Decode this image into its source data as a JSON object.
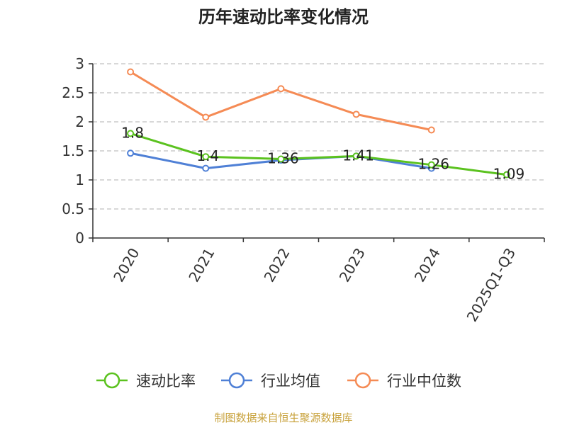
{
  "chart_data": {
    "type": "line",
    "title": "历年速动比率变化情况",
    "categories": [
      "2020",
      "2021",
      "2022",
      "2023",
      "2024",
      "2025Q1-Q3"
    ],
    "ylim": [
      0,
      3
    ],
    "yticks": [
      "0",
      "0.5",
      "1",
      "1.5",
      "2",
      "2.5",
      "3"
    ],
    "grid": true,
    "legend_position": "bottom",
    "series": [
      {
        "name": "速动比率",
        "color": "#5bc21f",
        "values": [
          1.8,
          1.4,
          1.36,
          1.41,
          1.26,
          1.09
        ],
        "labels": [
          "1.8",
          "1.4",
          "1.36",
          "1.41",
          "1.26",
          "1.09"
        ]
      },
      {
        "name": "行业均值",
        "color": "#4f80d6",
        "values": [
          1.46,
          1.2,
          1.34,
          1.41,
          1.2,
          null
        ]
      },
      {
        "name": "行业中位数",
        "color": "#f58b55",
        "values": [
          2.86,
          2.08,
          2.57,
          2.13,
          1.86,
          null
        ]
      }
    ],
    "source": "制图数据来自恒生聚源数据库"
  }
}
